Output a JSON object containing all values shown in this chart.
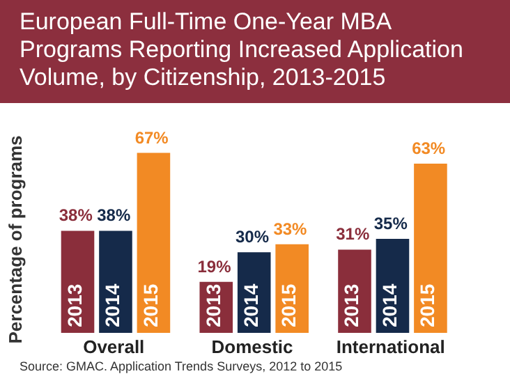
{
  "chart_data": {
    "type": "bar",
    "title": "European Full-Time One-Year MBA Programs Reporting Increased Application Volume, by Citizenship, 2013-2015",
    "ylabel": "Percentage of programs",
    "categories": [
      "Overall",
      "Domestic",
      "International"
    ],
    "series": [
      {
        "name": "2013",
        "color": "#8a2e3b",
        "values": [
          38,
          19,
          31
        ],
        "value_labels": [
          "38%",
          "19%",
          "31%"
        ]
      },
      {
        "name": "2014",
        "color": "#152a4a",
        "values": [
          38,
          30,
          35
        ],
        "value_labels": [
          "38%",
          "30%",
          "35%"
        ]
      },
      {
        "name": "2015",
        "color": "#f28a24",
        "values": [
          67,
          33,
          63
        ],
        "value_labels": [
          "67%",
          "33%",
          "63%"
        ]
      }
    ],
    "tick_labels": "x",
    "grid": false,
    "legend": false,
    "annotations": [
      "Source: GMAC. Application Trends Surveys, 2012 to 2015"
    ]
  }
}
